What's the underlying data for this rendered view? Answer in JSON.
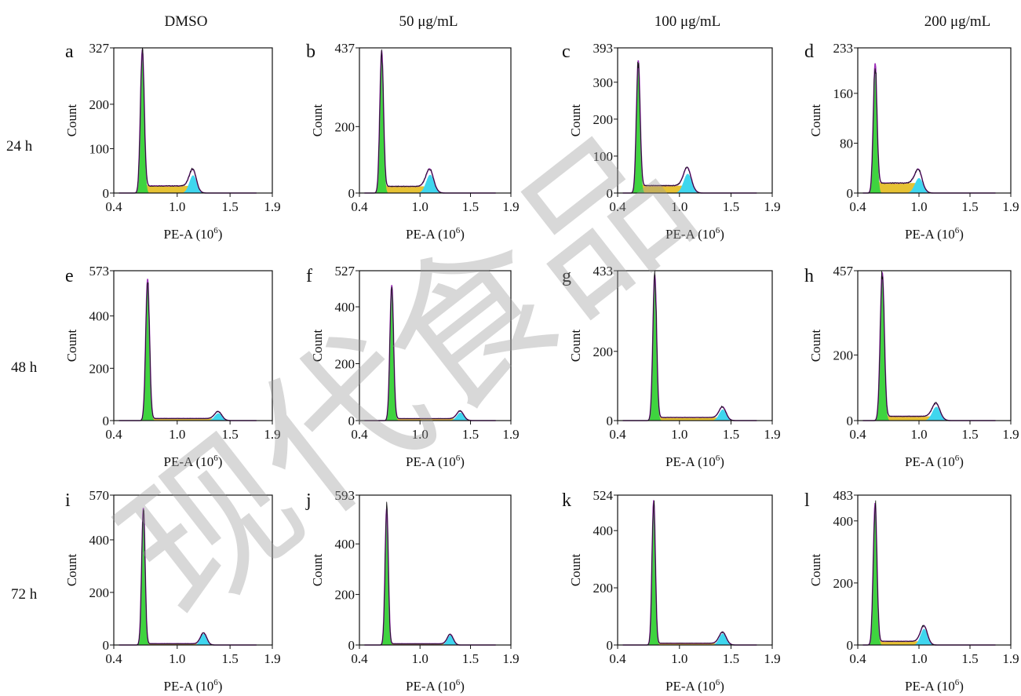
{
  "colors": {
    "g1_fill": "#3fd43f",
    "s_fill": "#e6c233",
    "g2_fill": "#3fd6ee",
    "envelope": "#9c2fb8",
    "trace": "#111111",
    "watermark": "#9a9a9a"
  },
  "watermark": {
    "text": "现代食品"
  },
  "column_headers": [
    "DMSO",
    "50 μg/mL",
    "100 μg/mL",
    "200 μg/mL"
  ],
  "row_headers": [
    "24 h",
    "48 h",
    "72 h"
  ],
  "chart_data": [
    {
      "type": "area",
      "panel": "a",
      "ylabel": "Count",
      "xlabel": "PE-A (10",
      "xlabel_sup": "6",
      "xlabel_tail": ")",
      "xlim": [
        0.4,
        1.9
      ],
      "ylim": [
        0,
        327
      ],
      "xticks": [
        0.4,
        1.0,
        1.5,
        1.9
      ],
      "xtick_labels": [
        "0.4",
        "1.0",
        "1.5",
        "1.9"
      ],
      "yticks": [
        0,
        100,
        200,
        327
      ],
      "ytick_labels": [
        "0",
        "100",
        "200",
        "327"
      ],
      "g1_mean": 0.67,
      "g1_peak": 320,
      "g1_sd": 0.018,
      "s_level": 16,
      "g2_mean": 1.15,
      "g2_peak": 40,
      "g2_sd": 0.035
    },
    {
      "type": "area",
      "panel": "b",
      "ylabel": "Count",
      "xlabel": "PE-A (10",
      "xlabel_sup": "6",
      "xlabel_tail": ")",
      "xlim": [
        0.4,
        1.9
      ],
      "ylim": [
        0,
        437
      ],
      "xticks": [
        0.4,
        1.0,
        1.5,
        1.9
      ],
      "xtick_labels": [
        "0.4",
        "1.0",
        "1.5",
        "1.9"
      ],
      "yticks": [
        0,
        200,
        437
      ],
      "ytick_labels": [
        "0",
        "200",
        "437"
      ],
      "g1_mean": 0.62,
      "g1_peak": 425,
      "g1_sd": 0.018,
      "s_level": 20,
      "g2_mean": 1.1,
      "g2_peak": 55,
      "g2_sd": 0.04
    },
    {
      "type": "area",
      "panel": "c",
      "ylabel": "Count",
      "xlabel": "PE-A (10",
      "xlabel_sup": "6",
      "xlabel_tail": ")",
      "xlim": [
        0.4,
        1.9
      ],
      "ylim": [
        0,
        393
      ],
      "xticks": [
        0.4,
        1.0,
        1.5,
        1.9
      ],
      "xtick_labels": [
        "0.4",
        "1.0",
        "1.5",
        "1.9"
      ],
      "yticks": [
        0,
        100,
        200,
        300,
        393
      ],
      "ytick_labels": [
        "0",
        "100",
        "200",
        "300",
        "393"
      ],
      "g1_mean": 0.6,
      "g1_peak": 355,
      "g1_sd": 0.018,
      "s_level": 20,
      "g2_mean": 1.08,
      "g2_peak": 52,
      "g2_sd": 0.04
    },
    {
      "type": "area",
      "panel": "d",
      "ylabel": "Count",
      "xlabel": "PE-A (10",
      "xlabel_sup": "6",
      "xlabel_tail": ")",
      "xlim": [
        0.4,
        1.9
      ],
      "ylim": [
        0,
        233
      ],
      "xticks": [
        0.4,
        1.0,
        1.5,
        1.9
      ],
      "xtick_labels": [
        "0.4",
        "1.0",
        "1.5",
        "1.9"
      ],
      "yticks": [
        0,
        80,
        160,
        233
      ],
      "ytick_labels": [
        "0",
        "80",
        "160",
        "233"
      ],
      "g1_mean": 0.57,
      "g1_peak": 205,
      "g1_sd": 0.018,
      "s_level": 16,
      "g2_mean": 1.0,
      "g2_peak": 24,
      "g2_sd": 0.04
    },
    {
      "type": "area",
      "panel": "e",
      "ylabel": "Count",
      "xlabel": "PE-A (10",
      "xlabel_sup": "6",
      "xlabel_tail": ")",
      "xlim": [
        0.4,
        1.9
      ],
      "ylim": [
        0,
        573
      ],
      "xticks": [
        0.4,
        1.0,
        1.5,
        1.9
      ],
      "xtick_labels": [
        "0.4",
        "1.0",
        "1.5",
        "1.9"
      ],
      "yticks": [
        0,
        200,
        400,
        573
      ],
      "ytick_labels": [
        "0",
        "200",
        "400",
        "573"
      ],
      "g1_mean": 0.72,
      "g1_peak": 540,
      "g1_sd": 0.018,
      "s_level": 8,
      "g2_mean": 1.39,
      "g2_peak": 28,
      "g2_sd": 0.035
    },
    {
      "type": "area",
      "panel": "f",
      "ylabel": "Count",
      "xlabel": "PE-A (10",
      "xlabel_sup": "6",
      "xlabel_tail": ")",
      "xlim": [
        0.4,
        1.9
      ],
      "ylim": [
        0,
        527
      ],
      "xticks": [
        0.4,
        1.0,
        1.5,
        1.9
      ],
      "xtick_labels": [
        "0.4",
        "1.0",
        "1.5",
        "1.9"
      ],
      "yticks": [
        0,
        200,
        400,
        527
      ],
      "ytick_labels": [
        "0",
        "200",
        "400",
        "527"
      ],
      "g1_mean": 0.72,
      "g1_peak": 475,
      "g1_sd": 0.018,
      "s_level": 7,
      "g2_mean": 1.4,
      "g2_peak": 28,
      "g2_sd": 0.035
    },
    {
      "type": "area",
      "panel": "g",
      "ylabel": "Count",
      "xlabel": "PE-A (10",
      "xlabel_sup": "6",
      "xlabel_tail": ")",
      "xlim": [
        0.4,
        1.9
      ],
      "ylim": [
        0,
        433
      ],
      "xticks": [
        0.4,
        1.0,
        1.5,
        1.9
      ],
      "xtick_labels": [
        "0.4",
        "1.0",
        "1.5",
        "1.9"
      ],
      "yticks": [
        0,
        200,
        433
      ],
      "ytick_labels": [
        "0",
        "200",
        "433"
      ],
      "g1_mean": 0.76,
      "g1_peak": 420,
      "g1_sd": 0.018,
      "s_level": 9,
      "g2_mean": 1.42,
      "g2_peak": 32,
      "g2_sd": 0.035
    },
    {
      "type": "area",
      "panel": "h",
      "ylabel": "Count",
      "xlabel": "PE-A (10",
      "xlabel_sup": "6",
      "xlabel_tail": ")",
      "xlim": [
        0.4,
        1.9
      ],
      "ylim": [
        0,
        457
      ],
      "xticks": [
        0.4,
        1.0,
        1.5,
        1.9
      ],
      "xtick_labels": [
        "0.4",
        "1.0",
        "1.5",
        "1.9"
      ],
      "yticks": [
        0,
        200,
        457
      ],
      "ytick_labels": [
        "0",
        "200",
        "457"
      ],
      "g1_mean": 0.64,
      "g1_peak": 450,
      "g1_sd": 0.02,
      "s_level": 13,
      "g2_mean": 1.17,
      "g2_peak": 42,
      "g2_sd": 0.04
    },
    {
      "type": "area",
      "panel": "i",
      "ylabel": "Count",
      "xlabel": "PE-A (10",
      "xlabel_sup": "6",
      "xlabel_tail": ")",
      "xlim": [
        0.4,
        1.9
      ],
      "ylim": [
        0,
        570
      ],
      "xticks": [
        0.4,
        1.0,
        1.5,
        1.9
      ],
      "xtick_labels": [
        "0.4",
        "1.0",
        "1.5",
        "1.9"
      ],
      "yticks": [
        0,
        200,
        400,
        570
      ],
      "ytick_labels": [
        "0",
        "200",
        "400",
        "570"
      ],
      "g1_mean": 0.68,
      "g1_peak": 520,
      "g1_sd": 0.016,
      "s_level": 5,
      "g2_mean": 1.25,
      "g2_peak": 42,
      "g2_sd": 0.03
    },
    {
      "type": "area",
      "panel": "j",
      "ylabel": "Count",
      "xlabel": "PE-A (10",
      "xlabel_sup": "6",
      "xlabel_tail": ")",
      "xlim": [
        0.4,
        1.9
      ],
      "ylim": [
        0,
        593
      ],
      "xticks": [
        0.4,
        1.0,
        1.5,
        1.9
      ],
      "xtick_labels": [
        "0.4",
        "1.0",
        "1.5",
        "1.9"
      ],
      "yticks": [
        0,
        200,
        400,
        593
      ],
      "ytick_labels": [
        "0",
        "200",
        "400",
        "593"
      ],
      "g1_mean": 0.67,
      "g1_peak": 540,
      "g1_sd": 0.016,
      "s_level": 5,
      "g2_mean": 1.3,
      "g2_peak": 38,
      "g2_sd": 0.03
    },
    {
      "type": "area",
      "panel": "k",
      "ylabel": "Count",
      "xlabel": "PE-A (10",
      "xlabel_sup": "6",
      "xlabel_tail": ")",
      "xlim": [
        0.4,
        1.9
      ],
      "ylim": [
        0,
        524
      ],
      "xticks": [
        0.4,
        1.0,
        1.5,
        1.9
      ],
      "xtick_labels": [
        "0.4",
        "1.0",
        "1.5",
        "1.9"
      ],
      "yticks": [
        0,
        200,
        400,
        524
      ],
      "ytick_labels": [
        "0",
        "200",
        "400",
        "524"
      ],
      "g1_mean": 0.75,
      "g1_peak": 505,
      "g1_sd": 0.016,
      "s_level": 6,
      "g2_mean": 1.42,
      "g2_peak": 40,
      "g2_sd": 0.035
    },
    {
      "type": "area",
      "panel": "l",
      "ylabel": "Count",
      "xlabel": "PE-A (10",
      "xlabel_sup": "6",
      "xlabel_tail": ")",
      "xlim": [
        0.4,
        1.9
      ],
      "ylim": [
        0,
        483
      ],
      "xticks": [
        0.4,
        1.0,
        1.5,
        1.9
      ],
      "xtick_labels": [
        "0.4",
        "1.0",
        "1.5",
        "1.9"
      ],
      "yticks": [
        0,
        200,
        400,
        483
      ],
      "ytick_labels": [
        "0",
        "200",
        "400",
        "483"
      ],
      "g1_mean": 0.57,
      "g1_peak": 455,
      "g1_sd": 0.018,
      "s_level": 12,
      "g2_mean": 1.05,
      "g2_peak": 52,
      "g2_sd": 0.035
    }
  ]
}
